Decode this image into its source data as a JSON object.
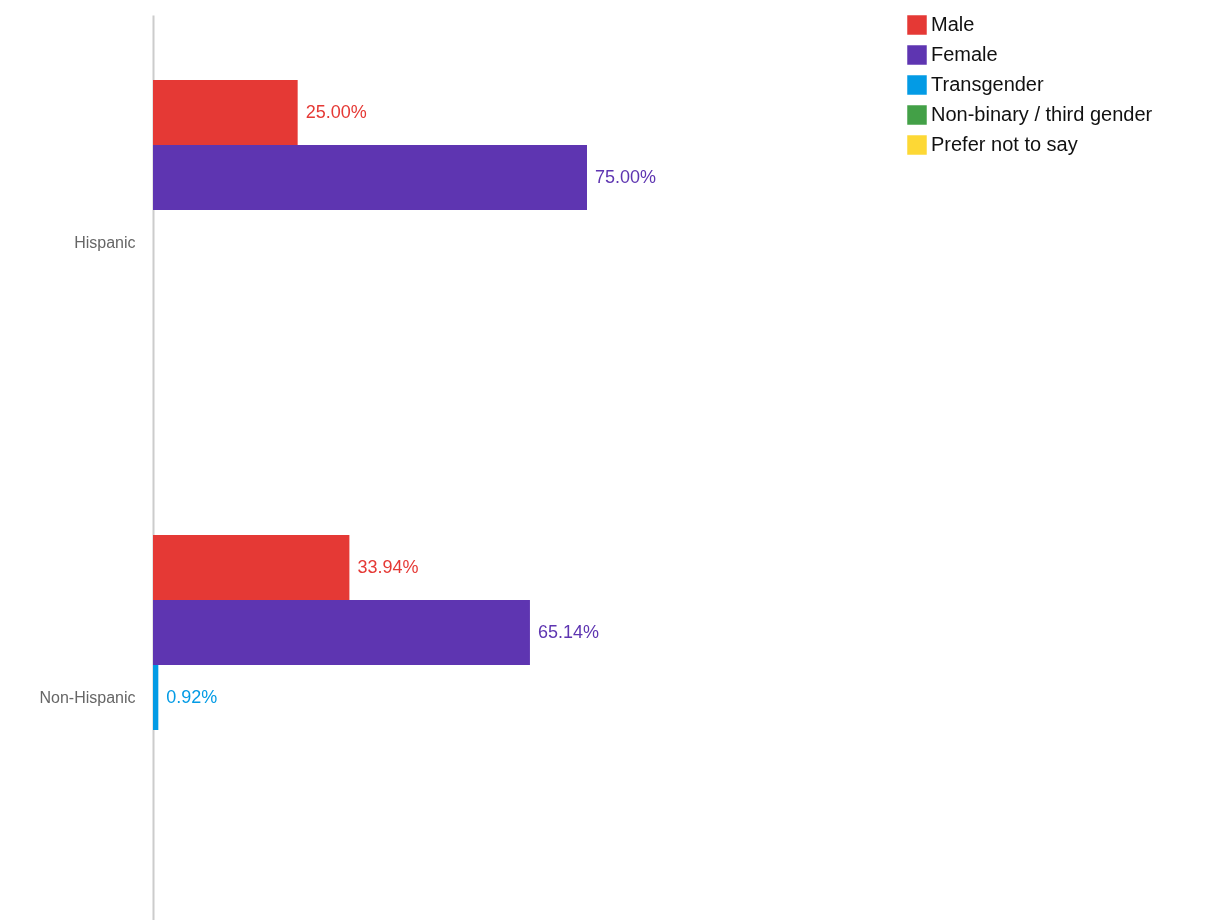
{
  "chart_data": {
    "type": "bar",
    "orientation": "horizontal",
    "categories": [
      "Hispanic",
      "Non-Hispanic"
    ],
    "series": [
      {
        "name": "Male",
        "color": "#e53935",
        "values": [
          25,
          33.94
        ],
        "value_labels": [
          "25.00%",
          "33.94%"
        ]
      },
      {
        "name": "Female",
        "color": "#5e35b1",
        "values": [
          75,
          65.14
        ],
        "value_labels": [
          "75.00%",
          "65.14%"
        ]
      },
      {
        "name": "Transgender",
        "color": "#039be5",
        "values": [
          null,
          0.92
        ],
        "value_labels": [
          null,
          "0.92%"
        ]
      },
      {
        "name": "Non-binary / third gender",
        "color": "#43a047",
        "values": [
          null,
          null
        ]
      },
      {
        "name": "Prefer not to say",
        "color": "#fdd835",
        "values": [
          null,
          null
        ]
      }
    ],
    "grid": false,
    "legend": "right"
  }
}
